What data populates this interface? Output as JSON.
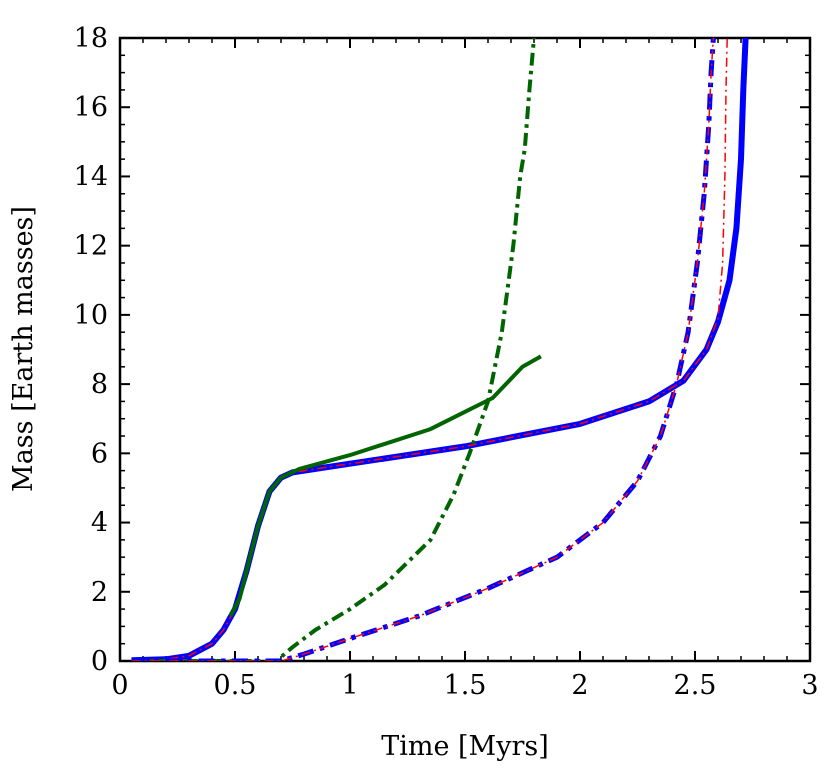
{
  "chart_data": {
    "type": "line",
    "title": "",
    "xlabel": "Time [Myrs]",
    "ylabel": "Mass [Earth masses]",
    "xlim": [
      0,
      3
    ],
    "ylim": [
      0,
      18
    ],
    "xticks": [
      0,
      0.5,
      1,
      1.5,
      2,
      2.5,
      3
    ],
    "xtick_labels": [
      "0",
      "0.5",
      "1",
      "1.5",
      "2",
      "2.5",
      "3"
    ],
    "yticks": [
      0,
      2,
      4,
      6,
      8,
      10,
      12,
      14,
      16,
      18
    ],
    "ytick_labels": [
      "0",
      "2",
      "4",
      "6",
      "8",
      "10",
      "12",
      "14",
      "16",
      "18"
    ],
    "grid": false,
    "legend": false,
    "series": [
      {
        "color": "#0000ff",
        "style": "solid",
        "width": 6,
        "points": [
          [
            0.05,
            0.02
          ],
          [
            0.2,
            0.05
          ],
          [
            0.3,
            0.15
          ],
          [
            0.4,
            0.5
          ],
          [
            0.45,
            0.9
          ],
          [
            0.5,
            1.5
          ],
          [
            0.55,
            2.6
          ],
          [
            0.6,
            3.9
          ],
          [
            0.65,
            4.9
          ],
          [
            0.7,
            5.3
          ],
          [
            0.75,
            5.45
          ],
          [
            0.85,
            5.55
          ],
          [
            1.0,
            5.7
          ],
          [
            1.5,
            6.2
          ],
          [
            2.0,
            6.85
          ],
          [
            2.3,
            7.5
          ],
          [
            2.45,
            8.1
          ],
          [
            2.55,
            9.0
          ],
          [
            2.6,
            9.8
          ],
          [
            2.65,
            11.0
          ],
          [
            2.68,
            12.5
          ],
          [
            2.7,
            14.5
          ],
          [
            2.71,
            16.5
          ],
          [
            2.72,
            18.0
          ]
        ]
      },
      {
        "color": "#ff0000",
        "style": "dash-dot",
        "width": 1.5,
        "points": [
          [
            0.05,
            0.02
          ],
          [
            0.2,
            0.05
          ],
          [
            0.3,
            0.15
          ],
          [
            0.4,
            0.5
          ],
          [
            0.45,
            0.9
          ],
          [
            0.5,
            1.5
          ],
          [
            0.55,
            2.6
          ],
          [
            0.6,
            3.9
          ],
          [
            0.65,
            4.9
          ],
          [
            0.7,
            5.3
          ],
          [
            0.75,
            5.45
          ],
          [
            0.85,
            5.55
          ],
          [
            1.0,
            5.7
          ],
          [
            1.5,
            6.2
          ],
          [
            2.0,
            6.85
          ],
          [
            2.3,
            7.5
          ],
          [
            2.45,
            8.1
          ],
          [
            2.55,
            9.0
          ],
          [
            2.6,
            9.9
          ],
          [
            2.62,
            11.5
          ],
          [
            2.63,
            14.0
          ],
          [
            2.635,
            16.5
          ],
          [
            2.64,
            18.0
          ]
        ]
      },
      {
        "color": "#006400",
        "style": "solid",
        "width": 4,
        "points": [
          [
            0.48,
            1.3
          ],
          [
            0.52,
            1.8
          ],
          [
            0.55,
            2.6
          ],
          [
            0.6,
            3.9
          ],
          [
            0.65,
            4.9
          ],
          [
            0.7,
            5.3
          ],
          [
            0.78,
            5.55
          ],
          [
            1.0,
            5.95
          ],
          [
            1.35,
            6.7
          ],
          [
            1.5,
            7.2
          ],
          [
            1.62,
            7.6
          ],
          [
            1.75,
            8.5
          ],
          [
            1.83,
            8.8
          ]
        ]
      },
      {
        "color": "#006400",
        "style": "dash-dot",
        "width": 4,
        "points": [
          [
            0.05,
            0.0
          ],
          [
            0.68,
            0.0
          ],
          [
            0.75,
            0.4
          ],
          [
            0.85,
            0.9
          ],
          [
            1.0,
            1.5
          ],
          [
            1.15,
            2.2
          ],
          [
            1.35,
            3.5
          ],
          [
            1.45,
            4.8
          ],
          [
            1.52,
            6.0
          ],
          [
            1.6,
            7.5
          ],
          [
            1.66,
            9.5
          ],
          [
            1.71,
            12.0
          ],
          [
            1.74,
            14.0
          ],
          [
            1.76,
            14.8
          ],
          [
            1.78,
            16.5
          ],
          [
            1.8,
            18.0
          ]
        ]
      },
      {
        "color": "#0000ff",
        "style": "dash-dot",
        "width": 5,
        "points": [
          [
            0.05,
            0.0
          ],
          [
            0.7,
            0.0
          ],
          [
            0.8,
            0.2
          ],
          [
            1.0,
            0.65
          ],
          [
            1.3,
            1.3
          ],
          [
            1.6,
            2.1
          ],
          [
            1.9,
            3.0
          ],
          [
            2.1,
            4.0
          ],
          [
            2.25,
            5.2
          ],
          [
            2.35,
            6.5
          ],
          [
            2.42,
            8.0
          ],
          [
            2.47,
            9.5
          ],
          [
            2.51,
            11.5
          ],
          [
            2.54,
            13.5
          ],
          [
            2.56,
            15.5
          ],
          [
            2.57,
            17.0
          ],
          [
            2.58,
            18.0
          ]
        ]
      },
      {
        "color": "#ff0000",
        "style": "dash-dot",
        "width": 1.5,
        "points": [
          [
            0.05,
            0.0
          ],
          [
            0.7,
            0.0
          ],
          [
            0.8,
            0.2
          ],
          [
            1.0,
            0.65
          ],
          [
            1.3,
            1.3
          ],
          [
            1.6,
            2.1
          ],
          [
            1.9,
            3.0
          ],
          [
            2.1,
            4.0
          ],
          [
            2.25,
            5.2
          ],
          [
            2.35,
            6.5
          ],
          [
            2.42,
            8.0
          ],
          [
            2.47,
            9.5
          ],
          [
            2.51,
            11.5
          ],
          [
            2.54,
            13.5
          ],
          [
            2.56,
            15.5
          ],
          [
            2.57,
            17.0
          ],
          [
            2.58,
            18.0
          ]
        ]
      }
    ]
  }
}
